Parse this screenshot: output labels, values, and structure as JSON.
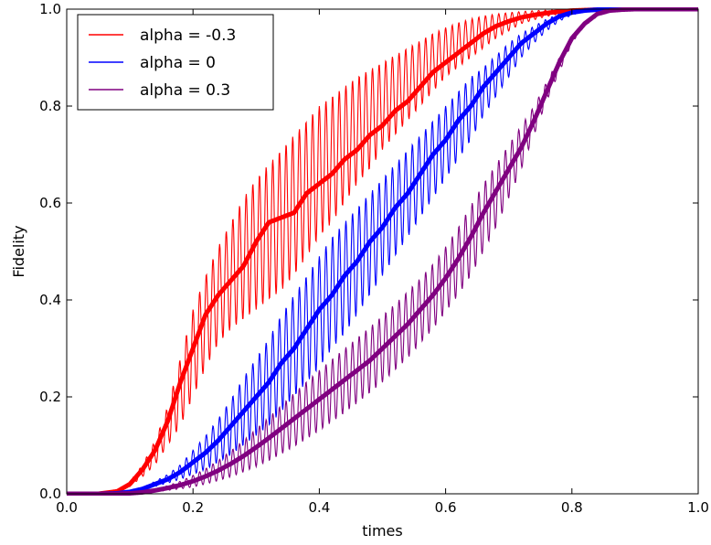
{
  "chart_data": {
    "type": "line",
    "title": "",
    "xlabel": "times",
    "ylabel": "Fidelity",
    "xlim": [
      0.0,
      1.0
    ],
    "ylim": [
      0.0,
      1.0
    ],
    "x_ticks": [
      "0.0",
      "0.2",
      "0.4",
      "0.6",
      "0.8",
      "1.0"
    ],
    "y_ticks": [
      "0.0",
      "0.2",
      "0.4",
      "0.6",
      "0.8",
      "1.0"
    ],
    "grid": false,
    "legend_position": "top-left",
    "oscillation_count": 95,
    "series": [
      {
        "name": "alpha = -0.3",
        "color": "#ff0000",
        "x": [
          0.0,
          0.05,
          0.08,
          0.1,
          0.12,
          0.14,
          0.16,
          0.18,
          0.2,
          0.22,
          0.24,
          0.26,
          0.28,
          0.3,
          0.32,
          0.34,
          0.36,
          0.38,
          0.4,
          0.42,
          0.44,
          0.46,
          0.48,
          0.5,
          0.52,
          0.54,
          0.56,
          0.58,
          0.6,
          0.62,
          0.64,
          0.66,
          0.68,
          0.7,
          0.72,
          0.74,
          0.76,
          0.78,
          0.8,
          0.82,
          0.84,
          0.86,
          0.88,
          0.9,
          0.95,
          1.0
        ],
        "center": [
          0.0,
          0.0,
          0.005,
          0.02,
          0.05,
          0.09,
          0.15,
          0.23,
          0.3,
          0.37,
          0.41,
          0.44,
          0.47,
          0.52,
          0.56,
          0.57,
          0.58,
          0.62,
          0.64,
          0.66,
          0.69,
          0.71,
          0.74,
          0.76,
          0.79,
          0.81,
          0.84,
          0.87,
          0.89,
          0.91,
          0.93,
          0.95,
          0.965,
          0.975,
          0.983,
          0.988,
          0.992,
          0.995,
          0.997,
          0.998,
          0.999,
          1.0,
          1.0,
          1.0,
          1.0,
          1.0
        ],
        "envelope_low": [
          0.0,
          0.0,
          0.004,
          0.015,
          0.035,
          0.06,
          0.1,
          0.14,
          0.2,
          0.26,
          0.31,
          0.34,
          0.36,
          0.38,
          0.4,
          0.42,
          0.45,
          0.49,
          0.53,
          0.56,
          0.6,
          0.64,
          0.67,
          0.71,
          0.74,
          0.77,
          0.8,
          0.83,
          0.86,
          0.88,
          0.9,
          0.92,
          0.94,
          0.955,
          0.97,
          0.978,
          0.985,
          0.99,
          0.994,
          0.996,
          0.998,
          0.999,
          1.0,
          1.0,
          1.0,
          1.0
        ],
        "envelope_high": [
          0.0,
          0.0,
          0.006,
          0.025,
          0.06,
          0.11,
          0.18,
          0.28,
          0.38,
          0.45,
          0.51,
          0.56,
          0.61,
          0.65,
          0.68,
          0.71,
          0.74,
          0.77,
          0.8,
          0.82,
          0.84,
          0.86,
          0.875,
          0.89,
          0.905,
          0.92,
          0.935,
          0.95,
          0.962,
          0.972,
          0.98,
          0.986,
          0.99,
          0.993,
          0.995,
          0.997,
          0.998,
          0.999,
          1.0,
          1.0,
          1.0,
          1.0,
          1.0,
          1.0,
          1.0,
          1.0
        ]
      },
      {
        "name": "alpha = 0",
        "color": "#0000ff",
        "x": [
          0.0,
          0.05,
          0.08,
          0.1,
          0.12,
          0.14,
          0.16,
          0.18,
          0.2,
          0.22,
          0.24,
          0.26,
          0.28,
          0.3,
          0.32,
          0.34,
          0.36,
          0.38,
          0.4,
          0.42,
          0.44,
          0.46,
          0.48,
          0.5,
          0.52,
          0.54,
          0.56,
          0.58,
          0.6,
          0.62,
          0.64,
          0.66,
          0.68,
          0.7,
          0.72,
          0.74,
          0.76,
          0.78,
          0.8,
          0.82,
          0.84,
          0.86,
          0.88,
          0.9,
          0.95,
          1.0
        ],
        "center": [
          0.0,
          0.0,
          0.001,
          0.004,
          0.01,
          0.02,
          0.03,
          0.045,
          0.065,
          0.085,
          0.11,
          0.14,
          0.17,
          0.2,
          0.23,
          0.27,
          0.3,
          0.34,
          0.38,
          0.41,
          0.45,
          0.48,
          0.52,
          0.55,
          0.59,
          0.62,
          0.66,
          0.7,
          0.73,
          0.77,
          0.8,
          0.84,
          0.87,
          0.9,
          0.93,
          0.95,
          0.97,
          0.985,
          0.993,
          0.997,
          0.999,
          1.0,
          1.0,
          1.0,
          1.0,
          1.0
        ],
        "envelope_low": [
          0.0,
          0.0,
          0.001,
          0.003,
          0.008,
          0.015,
          0.022,
          0.03,
          0.04,
          0.05,
          0.065,
          0.08,
          0.1,
          0.12,
          0.14,
          0.17,
          0.2,
          0.23,
          0.26,
          0.3,
          0.33,
          0.37,
          0.41,
          0.45,
          0.49,
          0.53,
          0.57,
          0.61,
          0.65,
          0.69,
          0.73,
          0.78,
          0.82,
          0.86,
          0.9,
          0.93,
          0.955,
          0.975,
          0.988,
          0.995,
          0.998,
          1.0,
          1.0,
          1.0,
          1.0,
          1.0
        ],
        "envelope_high": [
          0.0,
          0.0,
          0.001,
          0.005,
          0.013,
          0.026,
          0.04,
          0.06,
          0.09,
          0.12,
          0.155,
          0.195,
          0.24,
          0.28,
          0.32,
          0.37,
          0.41,
          0.45,
          0.49,
          0.53,
          0.56,
          0.59,
          0.62,
          0.65,
          0.68,
          0.71,
          0.74,
          0.77,
          0.8,
          0.83,
          0.86,
          0.88,
          0.905,
          0.93,
          0.95,
          0.965,
          0.98,
          0.99,
          0.995,
          0.998,
          0.999,
          1.0,
          1.0,
          1.0,
          1.0,
          1.0
        ]
      },
      {
        "name": "alpha = 0.3",
        "color": "#800080",
        "x": [
          0.0,
          0.05,
          0.08,
          0.1,
          0.12,
          0.14,
          0.16,
          0.18,
          0.2,
          0.22,
          0.24,
          0.26,
          0.28,
          0.3,
          0.32,
          0.34,
          0.36,
          0.38,
          0.4,
          0.42,
          0.44,
          0.46,
          0.48,
          0.5,
          0.52,
          0.54,
          0.56,
          0.58,
          0.6,
          0.62,
          0.64,
          0.66,
          0.68,
          0.7,
          0.72,
          0.74,
          0.76,
          0.78,
          0.8,
          0.82,
          0.84,
          0.86,
          0.88,
          0.9,
          0.95,
          1.0
        ],
        "center": [
          0.0,
          0.0,
          0.0,
          0.001,
          0.003,
          0.007,
          0.012,
          0.018,
          0.026,
          0.036,
          0.048,
          0.062,
          0.078,
          0.096,
          0.115,
          0.135,
          0.155,
          0.175,
          0.195,
          0.215,
          0.235,
          0.255,
          0.275,
          0.3,
          0.325,
          0.35,
          0.38,
          0.41,
          0.445,
          0.485,
          0.53,
          0.58,
          0.625,
          0.67,
          0.715,
          0.77,
          0.83,
          0.89,
          0.94,
          0.97,
          0.99,
          0.997,
          0.999,
          1.0,
          1.0,
          1.0
        ],
        "envelope_low": [
          0.0,
          0.0,
          0.0,
          0.001,
          0.002,
          0.004,
          0.007,
          0.01,
          0.014,
          0.02,
          0.027,
          0.035,
          0.045,
          0.056,
          0.068,
          0.082,
          0.097,
          0.113,
          0.13,
          0.148,
          0.167,
          0.187,
          0.208,
          0.23,
          0.255,
          0.28,
          0.31,
          0.34,
          0.375,
          0.41,
          0.45,
          0.5,
          0.55,
          0.61,
          0.67,
          0.74,
          0.81,
          0.87,
          0.93,
          0.965,
          0.985,
          0.995,
          0.999,
          1.0,
          1.0,
          1.0
        ],
        "envelope_high": [
          0.0,
          0.0,
          0.0,
          0.001,
          0.004,
          0.01,
          0.017,
          0.026,
          0.038,
          0.052,
          0.069,
          0.089,
          0.11,
          0.134,
          0.158,
          0.183,
          0.208,
          0.232,
          0.255,
          0.278,
          0.3,
          0.322,
          0.344,
          0.368,
          0.392,
          0.418,
          0.445,
          0.475,
          0.51,
          0.55,
          0.595,
          0.64,
          0.68,
          0.72,
          0.76,
          0.8,
          0.85,
          0.9,
          0.945,
          0.973,
          0.99,
          0.997,
          0.999,
          1.0,
          1.0,
          1.0
        ]
      }
    ]
  }
}
